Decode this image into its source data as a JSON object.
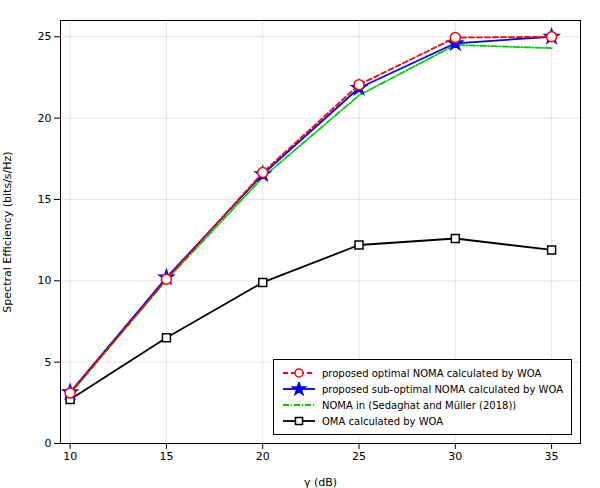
{
  "chart_data": {
    "type": "line",
    "x": [
      10,
      15,
      20,
      25,
      30,
      35
    ],
    "series": [
      {
        "name": "proposed optimal NOMA calculated by WOA",
        "color": "#FF0000",
        "marker": "circle",
        "line_style": "dashed",
        "values": [
          3.1,
          10.1,
          16.65,
          22.05,
          24.95,
          25.0
        ]
      },
      {
        "name": "proposed sub-optimal NOMA calculated by WOA",
        "color": "#0000FF",
        "marker": "star",
        "line_style": "solid",
        "values": [
          3.15,
          10.2,
          16.55,
          21.85,
          24.6,
          25.0
        ]
      },
      {
        "name": "NOMA in (Sedaghat and Müller (2018))",
        "color": "#00CC00",
        "line_style": "dashdot",
        "values": [
          3.05,
          10.05,
          16.35,
          21.4,
          24.5,
          24.3
        ]
      },
      {
        "name": "OMA calculated by WOA",
        "color": "#000000",
        "marker": "square",
        "line_style": "solid",
        "values": [
          2.7,
          6.5,
          9.9,
          12.2,
          12.6,
          11.9
        ]
      }
    ],
    "xlabel": "γ (dB)",
    "ylabel": "Spectral Efficiency (bits/s/Hz)",
    "xlim": [
      9.5,
      36.5
    ],
    "ylim": [
      0,
      26.0
    ],
    "xticks": [
      10,
      15,
      20,
      25,
      30,
      35
    ],
    "yticks": [
      0,
      5,
      10,
      15,
      20,
      25
    ],
    "grid": true,
    "legend": "lower right"
  }
}
